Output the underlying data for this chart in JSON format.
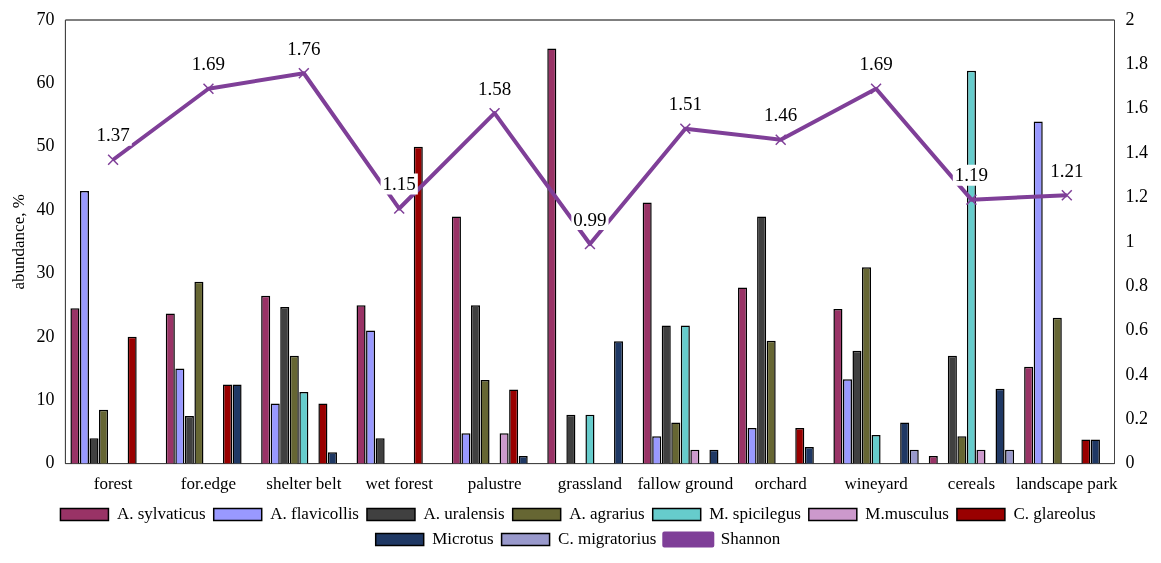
{
  "chart_data": {
    "type": "bar",
    "ylabel": "abundance, %",
    "categories": [
      "forest",
      "for.edge",
      "shelter belt",
      "wet forest",
      "palustre",
      "grassland",
      "fallow ground",
      "orchard",
      "wineyard",
      "cereals",
      "landscape park"
    ],
    "series": [
      {
        "name": "A. sylvaticus",
        "color": "#993366",
        "values": [
          24.5,
          23.7,
          26.5,
          25,
          39,
          65.5,
          41.2,
          27.8,
          24.4,
          1.2,
          15.3
        ]
      },
      {
        "name": "A. flavicollis",
        "color": "#9999ff",
        "values": [
          43,
          15,
          9.5,
          21,
          4.8,
          0,
          4.3,
          5.6,
          13.3,
          0,
          54
        ]
      },
      {
        "name": "A. uralensis",
        "color": "#404040",
        "values": [
          4,
          7.5,
          24.7,
          4,
          25,
          7.7,
          21.8,
          39,
          17.8,
          17,
          0
        ]
      },
      {
        "name": "A. agrarius",
        "color": "#666633",
        "values": [
          8.5,
          28.7,
          17,
          0,
          13.2,
          0,
          6.5,
          19.4,
          31,
          4.3,
          23
        ]
      },
      {
        "name": "M. spicilegus",
        "color": "#66cccc",
        "values": [
          0,
          0,
          11.3,
          0,
          0,
          7.7,
          21.8,
          0,
          4.5,
          62,
          0
        ]
      },
      {
        "name": "M.musculus",
        "color": "#cc99cc",
        "values": [
          0,
          0,
          0,
          0,
          4.8,
          0,
          2.2,
          0,
          0,
          2.2,
          0
        ]
      },
      {
        "name": "C. glareolus",
        "color": "#990000",
        "values": [
          20,
          12.5,
          9.5,
          50,
          11.7,
          0,
          0,
          5.6,
          0,
          0,
          3.8
        ]
      },
      {
        "name": "Microtus",
        "color": "#1f3864",
        "values": [
          0,
          12.5,
          1.8,
          0,
          1.2,
          19.3,
          2.2,
          2.6,
          6.5,
          11.8,
          3.8
        ]
      },
      {
        "name": "C. migratorius",
        "color": "#9999cc",
        "values": [
          0,
          0,
          0,
          0,
          0,
          0,
          0,
          0,
          2.2,
          2.2,
          0
        ]
      },
      {
        "name": "Shannon",
        "type": "line",
        "axis": "y2",
        "color": "#7f3f98",
        "marker": "cross",
        "data_labels": true,
        "values": [
          1.37,
          1.69,
          1.76,
          1.15,
          1.58,
          0.99,
          1.51,
          1.46,
          1.69,
          1.19,
          1.21
        ]
      }
    ],
    "ylim": [
      0,
      70
    ],
    "yticks": [
      0,
      10,
      20,
      30,
      40,
      50,
      60,
      70
    ],
    "y2lim": [
      0,
      2
    ],
    "y2ticks": [
      0,
      0.2,
      0.4,
      0.6,
      0.8,
      1,
      1.2,
      1.4,
      1.6,
      1.8,
      2
    ],
    "grid": false,
    "legend": "bottom"
  }
}
